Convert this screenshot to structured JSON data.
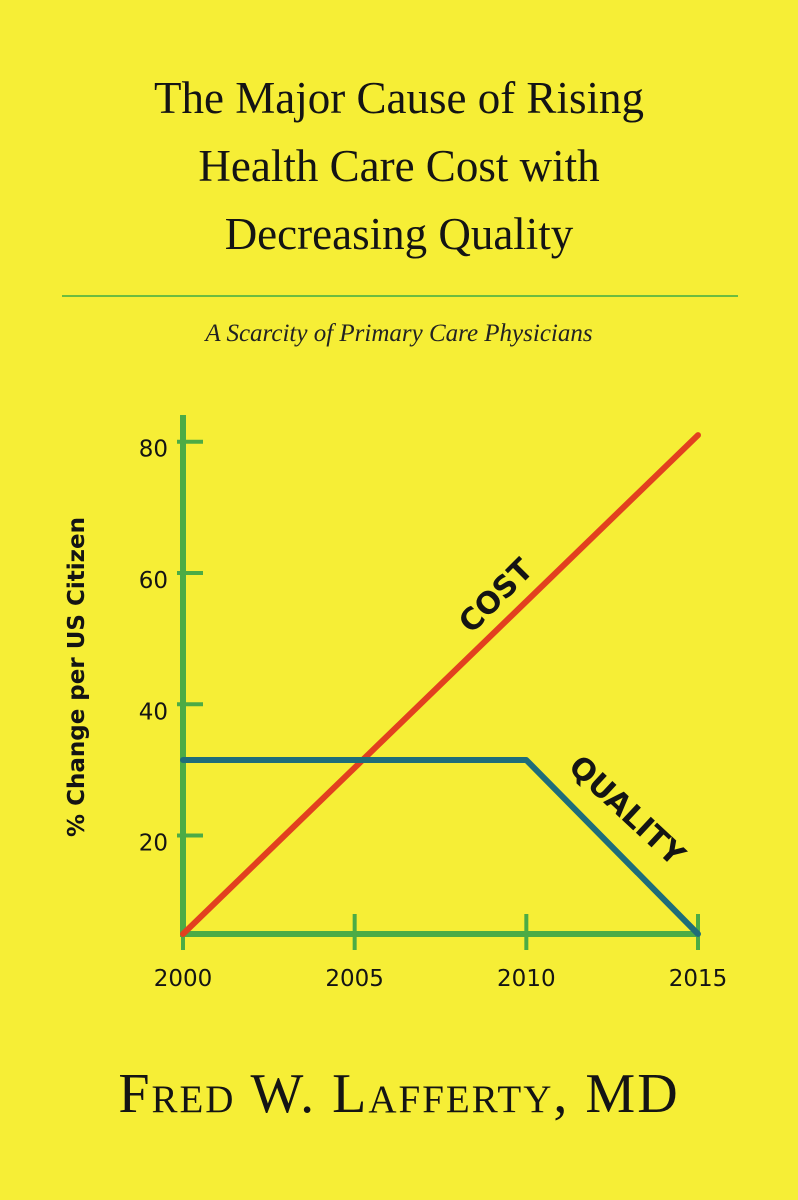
{
  "cover": {
    "title_lines": [
      "The Major Cause of Rising",
      "Health Care Cost with",
      "Decreasing Quality"
    ],
    "subtitle": "A Scarcity of Primary Care Physicians",
    "author": "Fred W. Lafferty, MD"
  },
  "colors": {
    "background": "#f6ee36",
    "axes": "#4cab45",
    "rule": "#6cbd3f",
    "cost_line": "#e2401f",
    "quality_line": "#1f6d79",
    "text": "#141414"
  },
  "chart_data": {
    "type": "line",
    "title": "",
    "xlabel": "",
    "ylabel": "% Change per US Citizen",
    "x_ticks": [
      "2000",
      "2005",
      "2010",
      "2015"
    ],
    "y_ticks": [
      "20",
      "40",
      "60",
      "80"
    ],
    "xlim": [
      2000,
      2015
    ],
    "ylim": [
      5,
      83
    ],
    "grid": false,
    "legend": "none",
    "series": [
      {
        "name": "COST",
        "color": "#e2401f",
        "x": [
          2000,
          2015
        ],
        "y": [
          5,
          81
        ]
      },
      {
        "name": "QUALITY",
        "color": "#1f6d79",
        "x": [
          2000,
          2010,
          2015
        ],
        "y": [
          31.5,
          31.5,
          5
        ]
      }
    ]
  }
}
